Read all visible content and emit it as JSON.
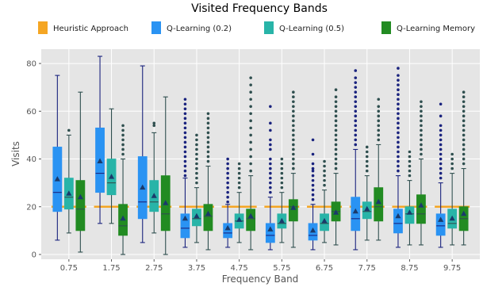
{
  "chart_data": {
    "type": "box",
    "title": "Visited Frequency Bands",
    "xlabel": "Frequency Band",
    "ylabel": "Visits",
    "ylim": [
      -2,
      86
    ],
    "yticks": [
      0,
      20,
      40,
      60,
      80
    ],
    "grid": true,
    "legend_position": "top",
    "categories": [
      "0.75",
      "1.75",
      "2.75",
      "3.75",
      "4.75",
      "5.75",
      "6.75",
      "7.75",
      "8.75",
      "9.75"
    ],
    "heuristic": {
      "name": "Heuristic Approach",
      "color": "#f5a623",
      "value": 20
    },
    "series": [
      {
        "name": "Q-Learning (0.2)",
        "color": "#2a93f3",
        "edge_color": "#1a237e",
        "boxes": [
          {
            "whislo": 6,
            "q1": 18,
            "med": 26,
            "q3": 45,
            "whishi": 75,
            "mean": 31.5,
            "fliers": []
          },
          {
            "whislo": 13,
            "q1": 26,
            "med": 34,
            "q3": 53,
            "whishi": 83,
            "mean": 39,
            "fliers": []
          },
          {
            "whislo": 5,
            "q1": 15,
            "med": 22,
            "q3": 41,
            "whishi": 79,
            "mean": 28,
            "fliers": []
          },
          {
            "whislo": 3,
            "q1": 7,
            "med": 11,
            "q3": 17,
            "whishi": 32,
            "mean": 15,
            "fliers": [
              33,
              35,
              37,
              39,
              41,
              43,
              45,
              47,
              49,
              51,
              53,
              55,
              57,
              59,
              61,
              63,
              65
            ]
          },
          {
            "whislo": 3,
            "q1": 7,
            "med": 9,
            "q3": 13,
            "whishi": 21,
            "mean": 11,
            "fliers": [
              22,
              24,
              26,
              28,
              30,
              32,
              34,
              36,
              38,
              40
            ]
          },
          {
            "whislo": 2,
            "q1": 5,
            "med": 8,
            "q3": 13,
            "whishi": 24,
            "mean": 10.5,
            "fliers": [
              26,
              28,
              30,
              32,
              34,
              36,
              38,
              40,
              44,
              46,
              48,
              52,
              55,
              62
            ]
          },
          {
            "whislo": 2,
            "q1": 6,
            "med": 8,
            "q3": 13,
            "whishi": 21,
            "mean": 10,
            "fliers": [
              23,
              25,
              27,
              29,
              31,
              33,
              35,
              36,
              38,
              42,
              48
            ]
          },
          {
            "whislo": 2,
            "q1": 10,
            "med": 15,
            "q3": 24,
            "whishi": 44,
            "mean": 18,
            "fliers": [
              46,
              48,
              50,
              52,
              54,
              56,
              58,
              60,
              62,
              64,
              66,
              68,
              70,
              72,
              74,
              77
            ]
          },
          {
            "whislo": 3,
            "q1": 9,
            "med": 13,
            "q3": 19,
            "whishi": 33,
            "mean": 16,
            "fliers": [
              35,
              37,
              39,
              41,
              43,
              45,
              47,
              49,
              51,
              53,
              55,
              57,
              59,
              61,
              63,
              65,
              67,
              69,
              71,
              73,
              75,
              78
            ]
          },
          {
            "whislo": 3,
            "q1": 8,
            "med": 12,
            "q3": 17,
            "whishi": 30,
            "mean": 14.5,
            "fliers": [
              32,
              34,
              36,
              38,
              40,
              42,
              44,
              46,
              48,
              50,
              52,
              54,
              58,
              63
            ]
          }
        ]
      },
      {
        "name": "Q-Learning (0.5)",
        "color": "#28b4a8",
        "edge_color": "#2f4f4f",
        "boxes": [
          {
            "whislo": 9,
            "q1": 19,
            "med": 24,
            "q3": 32,
            "whishi": 50,
            "mean": 25.5,
            "fliers": [
              52
            ]
          },
          {
            "whislo": 13,
            "q1": 25,
            "med": 30,
            "q3": 40,
            "whishi": 61,
            "mean": 32.5,
            "fliers": []
          },
          {
            "whislo": 9,
            "q1": 18,
            "med": 22,
            "q3": 31,
            "whishi": 51,
            "mean": 24.5,
            "fliers": [
              54,
              55
            ]
          },
          {
            "whislo": 5,
            "q1": 12,
            "med": 15,
            "q3": 19,
            "whishi": 28,
            "mean": 16,
            "fliers": [
              30,
              32,
              34,
              36,
              38,
              40,
              42,
              44,
              46,
              48,
              50
            ]
          },
          {
            "whislo": 5,
            "q1": 11,
            "med": 14,
            "q3": 17,
            "whishi": 26,
            "mean": 14.5,
            "fliers": [
              28,
              30,
              32,
              34,
              36,
              38
            ]
          },
          {
            "whislo": 5,
            "q1": 11,
            "med": 13,
            "q3": 17,
            "whishi": 26,
            "mean": 14,
            "fliers": [
              28,
              30,
              32,
              34,
              36,
              38,
              40
            ]
          },
          {
            "whislo": 5,
            "q1": 10,
            "med": 13,
            "q3": 17,
            "whishi": 27,
            "mean": 14,
            "fliers": [
              29,
              31,
              33,
              35,
              37,
              39
            ]
          },
          {
            "whislo": 6,
            "q1": 15,
            "med": 18,
            "q3": 22,
            "whishi": 33,
            "mean": 19,
            "fliers": [
              35,
              37,
              39,
              41,
              43,
              45
            ]
          },
          {
            "whislo": 4,
            "q1": 13,
            "med": 17,
            "q3": 20,
            "whishi": 31,
            "mean": 17.5,
            "fliers": [
              33,
              35,
              37,
              39,
              41,
              43
            ]
          },
          {
            "whislo": 4,
            "q1": 11,
            "med": 13,
            "q3": 19,
            "whishi": 34,
            "mean": 15,
            "fliers": [
              36,
              38,
              40,
              42
            ]
          }
        ]
      },
      {
        "name": "Q-Learning Memory",
        "color": "#228b22",
        "edge_color": "#2f4f4f",
        "boxes": [
          {
            "whislo": 1,
            "q1": 10,
            "med": 19,
            "q3": 31,
            "whishi": 68,
            "mean": 24,
            "fliers": []
          },
          {
            "whislo": 0,
            "q1": 8,
            "med": 12,
            "q3": 21,
            "whishi": 40,
            "mean": 15,
            "fliers": [
              42,
              44,
              46,
              48,
              50,
              52,
              54
            ]
          },
          {
            "whislo": 0,
            "q1": 10,
            "med": 17,
            "q3": 33,
            "whishi": 66,
            "mean": 21.5,
            "fliers": []
          },
          {
            "whislo": 2,
            "q1": 10,
            "med": 16,
            "q3": 21,
            "whishi": 37,
            "mean": 17,
            "fliers": [
              39,
              41,
              43,
              45,
              47,
              49,
              51,
              53,
              55,
              57,
              59
            ]
          },
          {
            "whislo": 2,
            "q1": 10,
            "med": 15,
            "q3": 19,
            "whishi": 33,
            "mean": 16,
            "fliers": [
              35,
              38,
              41,
              44,
              47,
              50,
              53,
              56,
              59,
              62,
              65,
              68,
              71,
              74
            ]
          },
          {
            "whislo": 3,
            "q1": 14,
            "med": 20,
            "q3": 23,
            "whishi": 34,
            "mean": 19.5,
            "fliers": [
              36,
              38,
              40,
              42,
              44,
              46,
              48,
              50,
              52,
              54,
              56,
              58,
              60,
              62,
              64,
              66,
              68
            ]
          },
          {
            "whislo": 4,
            "q1": 14,
            "med": 18,
            "q3": 22,
            "whishi": 34,
            "mean": 17.5,
            "fliers": [
              36,
              38,
              40,
              42,
              44,
              46,
              48,
              50,
              52,
              54,
              56,
              58,
              60,
              62,
              64,
              66,
              69
            ]
          },
          {
            "whislo": 6,
            "q1": 14,
            "med": 20,
            "q3": 28,
            "whishi": 46,
            "mean": 22,
            "fliers": [
              48,
              50,
              52,
              54,
              56,
              58,
              60,
              62,
              65
            ]
          },
          {
            "whislo": 4,
            "q1": 13,
            "med": 17,
            "q3": 25,
            "whishi": 40,
            "mean": 20.5,
            "fliers": [
              42,
              44,
              46,
              48,
              50,
              52,
              54,
              56,
              58,
              60,
              62,
              64
            ]
          },
          {
            "whislo": 4,
            "q1": 10,
            "med": 15,
            "q3": 20,
            "whishi": 36,
            "mean": 17,
            "fliers": [
              38,
              40,
              42,
              44,
              46,
              48,
              50,
              52,
              54,
              56,
              58,
              60,
              62,
              64,
              66,
              68
            ]
          }
        ]
      }
    ]
  }
}
